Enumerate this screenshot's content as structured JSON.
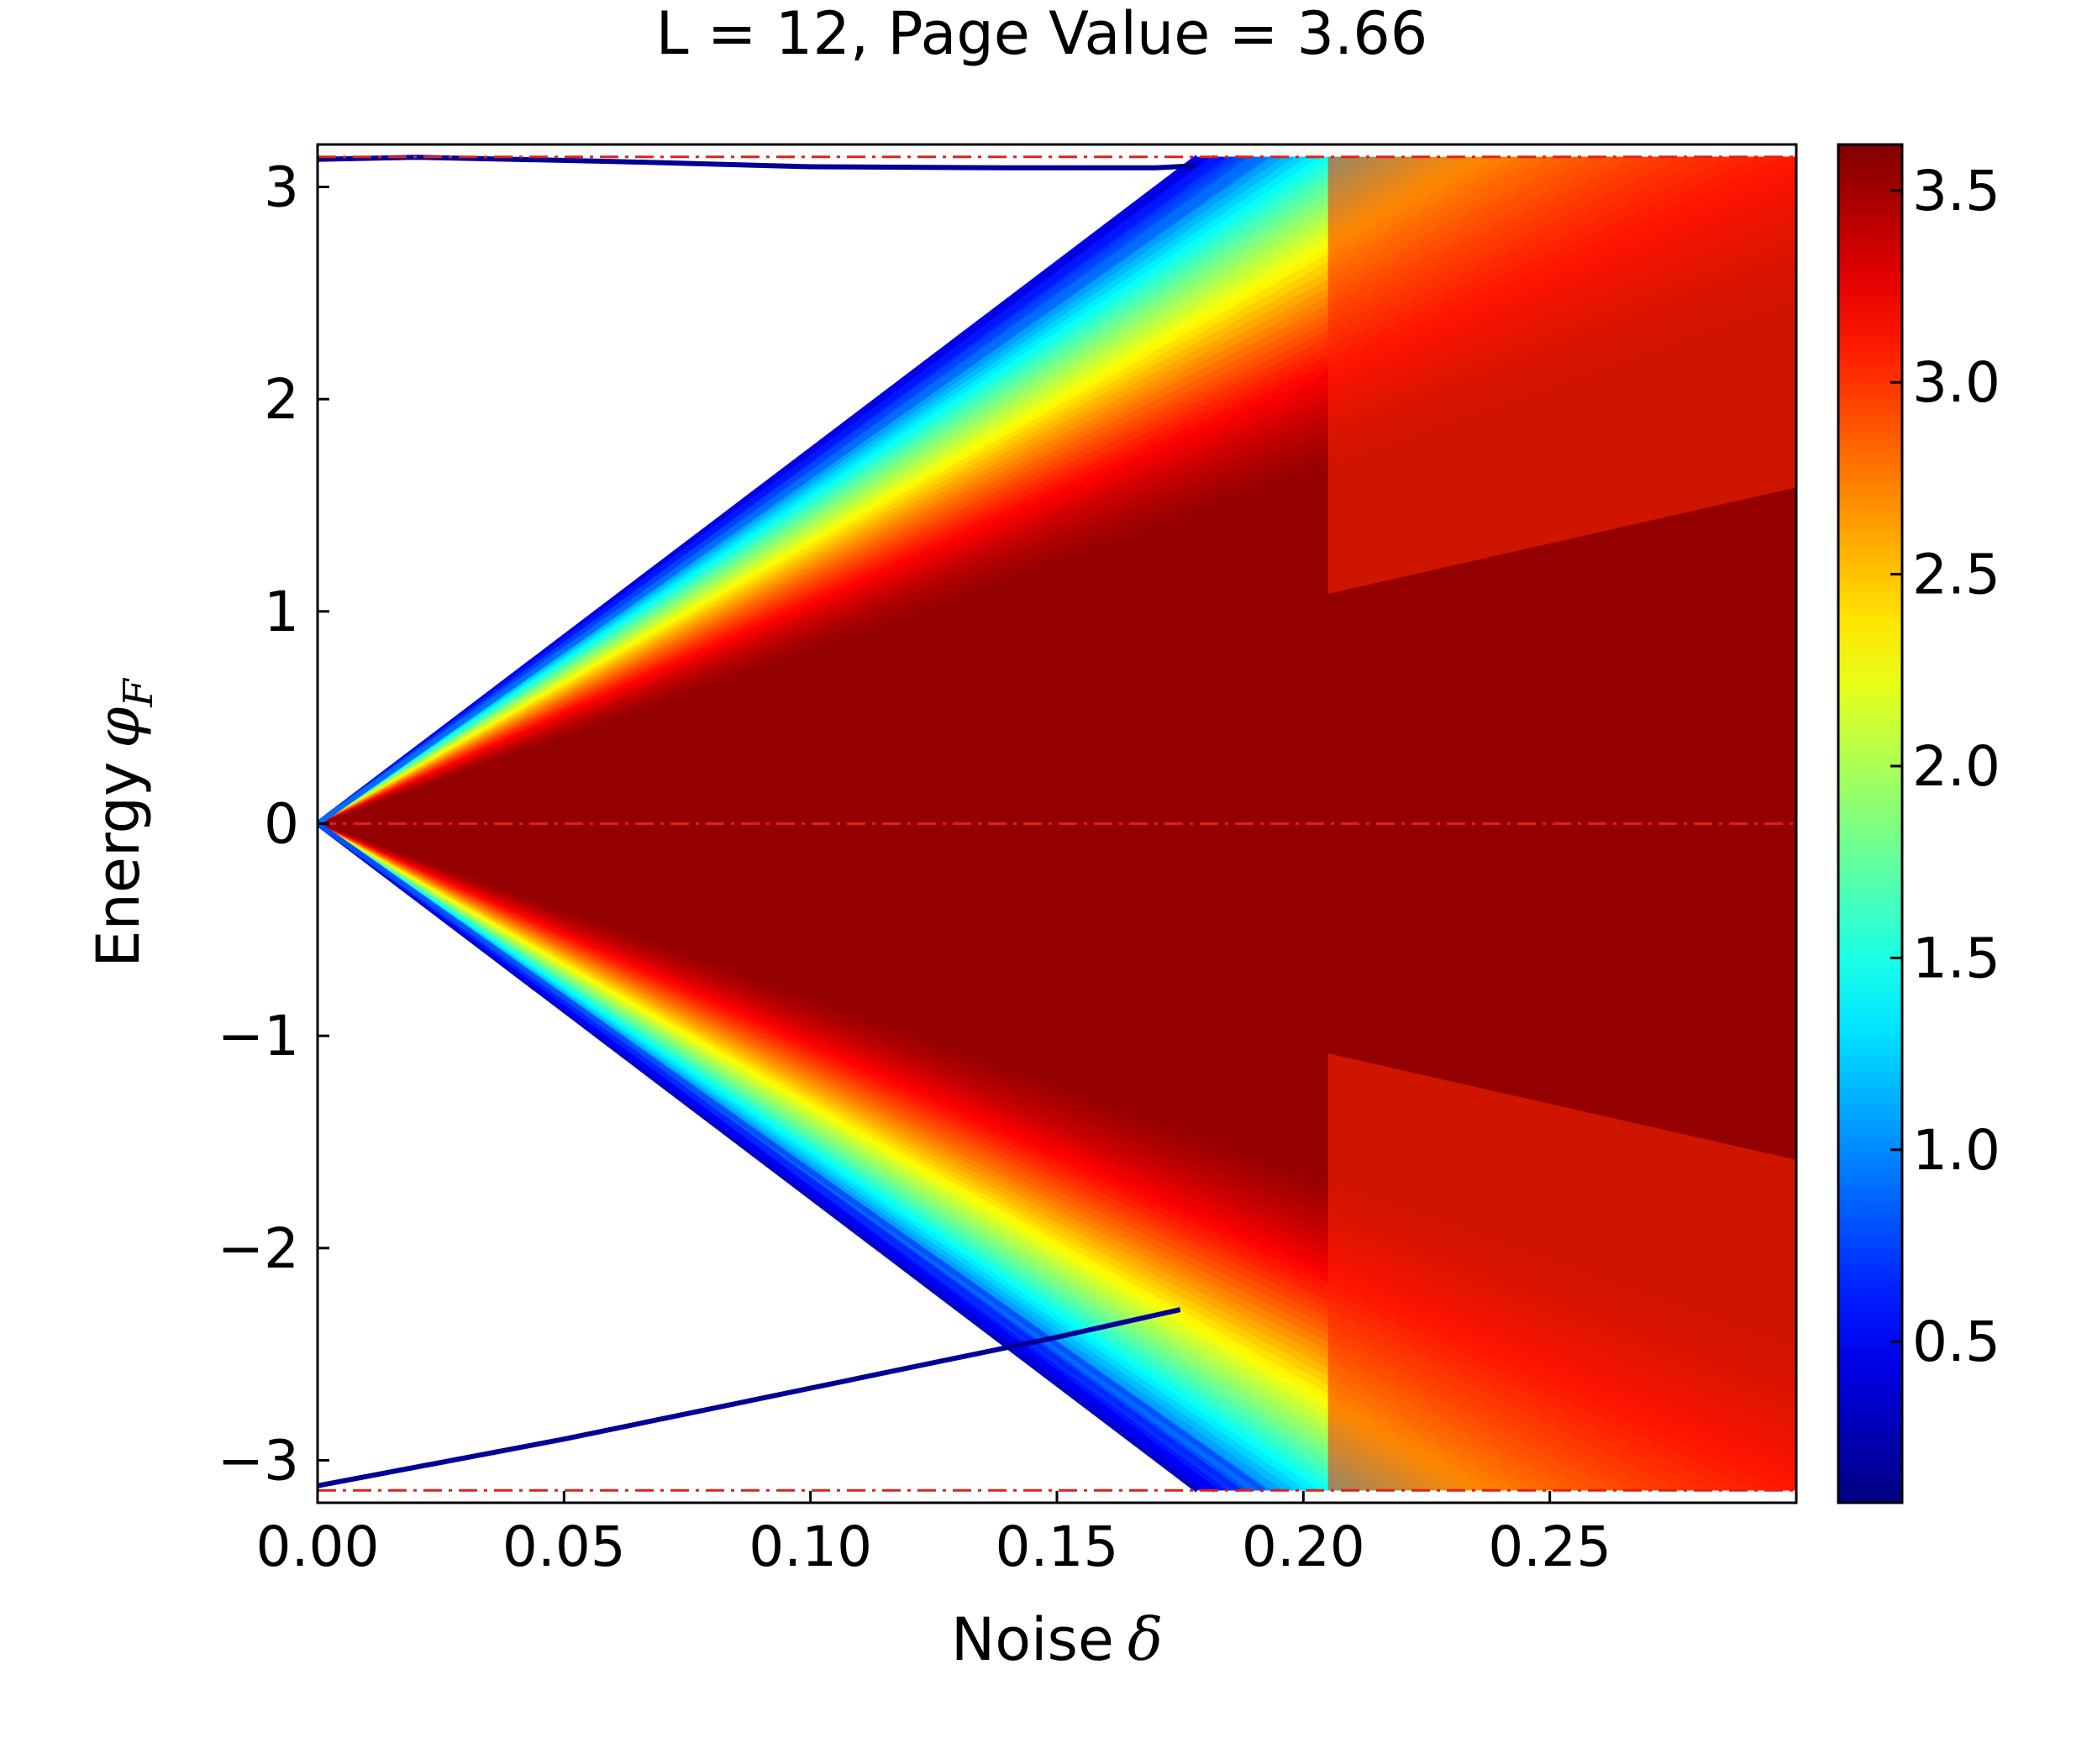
{
  "chart_data": {
    "type": "heatmap",
    "title": "L = 12, Page Value = 3.66",
    "xlabel": {
      "text": "Noise",
      "symbol": "δ"
    },
    "ylabel": {
      "text": "Energy",
      "symbol": "φ",
      "subscript": "F"
    },
    "xlim": [
      0.0,
      0.3
    ],
    "ylim": [
      -3.2,
      3.2
    ],
    "x_ticks": [
      0.0,
      0.05,
      0.1,
      0.15,
      0.2,
      0.25
    ],
    "x_tick_labels": [
      "0.00",
      "0.05",
      "0.10",
      "0.15",
      "0.20",
      "0.25"
    ],
    "y_ticks": [
      -3,
      -2,
      -1,
      0,
      1,
      2,
      3
    ],
    "y_tick_labels": [
      "−3",
      "−2",
      "−1",
      "0",
      "1",
      "2",
      "3"
    ],
    "colorbar": {
      "colormap": "jet",
      "range": [
        0.08,
        3.62
      ],
      "ticks": [
        0.5,
        1.0,
        1.5,
        2.0,
        2.5,
        3.0,
        3.5
      ],
      "tick_labels": [
        "0.5",
        "1.0",
        "1.5",
        "2.0",
        "2.5",
        "3.0",
        "3.5"
      ]
    },
    "reference_lines": [
      {
        "y": 3.1416,
        "color": "#e0201a",
        "style": "dashdot"
      },
      {
        "y": 0.0,
        "color": "#e0201a",
        "style": "dashdot"
      },
      {
        "y": -3.1416,
        "color": "#e0201a",
        "style": "dashdot"
      }
    ],
    "fan": {
      "apex": [
        0.0,
        0.0
      ],
      "edge_slope": 17.6,
      "peak_value": 3.55,
      "edge_value": 0.4,
      "wrap_onset_x": 0.175,
      "note_colors": {
        "edge": "#1030e0",
        "mid": "#e8e020",
        "center": "#800d12"
      }
    },
    "branches": [
      {
        "name": "upper",
        "x": [
          0.0,
          0.02,
          0.06,
          0.1,
          0.14,
          0.17,
          0.178
        ],
        "y": [
          3.13,
          3.14,
          3.12,
          3.095,
          3.09,
          3.09,
          3.1
        ],
        "value": 0.15
      },
      {
        "name": "lower",
        "x": [
          0.0,
          0.05,
          0.1,
          0.15,
          0.175
        ],
        "y": [
          -3.12,
          -2.9,
          -2.66,
          -2.42,
          -2.29
        ],
        "value": 0.15
      }
    ]
  }
}
